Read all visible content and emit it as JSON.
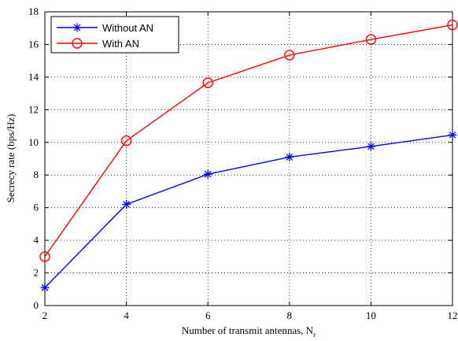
{
  "chart_data": {
    "type": "line",
    "title": "",
    "xlabel": "Number of transmit antennas, N",
    "xlabel_subscript": "r",
    "ylabel": "Secrecy rate (bps/Hz)",
    "x": [
      2,
      4,
      6,
      8,
      10,
      12
    ],
    "xlim": [
      2,
      12
    ],
    "ylim": [
      0,
      18
    ],
    "xticks": [
      2,
      4,
      6,
      8,
      10,
      12
    ],
    "yticks": [
      0,
      2,
      4,
      6,
      8,
      10,
      12,
      14,
      16,
      18
    ],
    "grid": true,
    "legend_position": "top-left",
    "series": [
      {
        "name": "Without AN",
        "values": [
          1.1,
          6.2,
          8.05,
          9.1,
          9.75,
          10.45
        ],
        "color": "#0000ff",
        "marker": "asterisk"
      },
      {
        "name": "With AN",
        "values": [
          3.0,
          10.1,
          13.65,
          15.35,
          16.3,
          17.2
        ],
        "color": "#ff0000",
        "marker": "circle"
      }
    ]
  }
}
